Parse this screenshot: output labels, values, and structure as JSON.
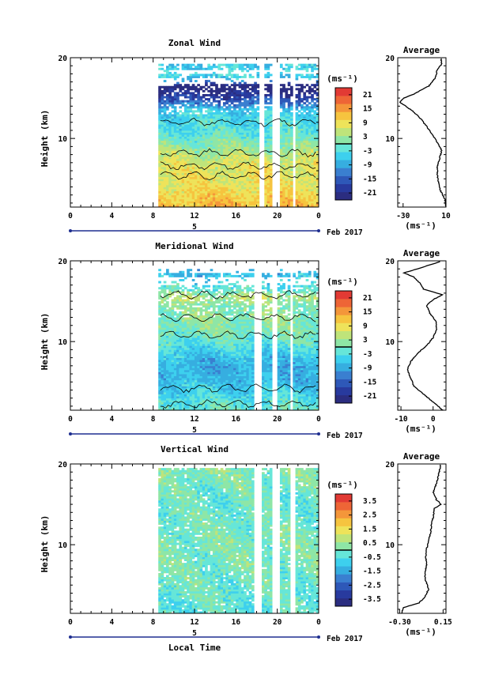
{
  "figure": {
    "date_label": "Feb 2017",
    "day_label": "5",
    "xlabel": "Local Time"
  },
  "colors": {
    "scale": [
      "#2b2d80",
      "#283a9e",
      "#2e58b8",
      "#3a7fd0",
      "#36aee0",
      "#3dd0ee",
      "#66e6d8",
      "#8ee6a6",
      "#bfe47a",
      "#eee35a",
      "#f6c43f",
      "#f4963a",
      "#ee6536",
      "#e23a34"
    ],
    "contour": "#000000",
    "frame": "#000000"
  },
  "chart_data": [
    {
      "type": "heatmap",
      "title": "Zonal Wind",
      "ylabel": "Height (km)",
      "unit": "(ms⁻¹)",
      "xticks": [
        "0",
        "4",
        "8",
        "12",
        "16",
        "20",
        "0"
      ],
      "xlim": [
        0,
        24
      ],
      "ylim": [
        1.5,
        20
      ],
      "yticks": [
        "10",
        "20"
      ],
      "colorbar_ticks": [
        "21",
        "15",
        "9",
        "3",
        "-3",
        "-9",
        "-15",
        "-21"
      ],
      "colorbar_range": [
        -24,
        24
      ],
      "data_start_hour": 8.5,
      "gaps": [
        [
          18.3,
          18.8
        ],
        [
          19.6,
          20.3
        ],
        [
          21.4,
          21.8
        ]
      ],
      "height_profile": [
        [
          1.5,
          13
        ],
        [
          4,
          9
        ],
        [
          7,
          7
        ],
        [
          9,
          2
        ],
        [
          10.5,
          -2
        ],
        [
          11.5,
          -3
        ],
        [
          13.5,
          -5
        ],
        [
          14.5,
          -14
        ],
        [
          15.5,
          -20
        ],
        [
          16.5,
          -26
        ],
        [
          17.2,
          -8
        ],
        [
          18,
          -4
        ],
        [
          19,
          -6
        ],
        [
          20,
          -3
        ]
      ],
      "gaps_y": [
        [
          16.8,
          17.6
        ],
        [
          17.9,
          18.4
        ],
        [
          19.3,
          20
        ]
      ],
      "data_top": 19.2,
      "average": {
        "title": "Average",
        "xlabel": "(ms⁻¹)",
        "xticks": [
          "-30",
          "10"
        ],
        "xlim": [
          -35,
          10
        ],
        "yticks": [
          "10",
          "20"
        ],
        "profile": [
          [
            1.5,
            10
          ],
          [
            2.5,
            9
          ],
          [
            3.5,
            5
          ],
          [
            4.5,
            3
          ],
          [
            5.5,
            2
          ],
          [
            6.5,
            2
          ],
          [
            7.5,
            4
          ],
          [
            8.5,
            6
          ],
          [
            9.5,
            2
          ],
          [
            10.5,
            -3
          ],
          [
            11.5,
            -8
          ],
          [
            12.5,
            -14
          ],
          [
            13.5,
            -22
          ],
          [
            14.5,
            -33
          ],
          [
            15.0,
            -29
          ],
          [
            15.5,
            -20
          ],
          [
            16.5,
            -6
          ],
          [
            17.5,
            0
          ],
          [
            18.5,
            2
          ],
          [
            19.2,
            6
          ],
          [
            20,
            5
          ]
        ]
      }
    },
    {
      "type": "heatmap",
      "title": "Meridional Wind",
      "ylabel": "Height (km)",
      "unit": "(ms⁻¹)",
      "xticks": [
        "0",
        "4",
        "8",
        "12",
        "16",
        "20",
        "0"
      ],
      "xlim": [
        0,
        24
      ],
      "ylim": [
        1.5,
        20
      ],
      "yticks": [
        "10",
        "20"
      ],
      "colorbar_ticks": [
        "21",
        "15",
        "9",
        "3",
        "-3",
        "-9",
        "-15",
        "-21"
      ],
      "colorbar_range": [
        -24,
        24
      ],
      "data_start_hour": 8.5,
      "gaps": [
        [
          17.8,
          18.4
        ],
        [
          19.4,
          20.0
        ],
        [
          21.2,
          21.6
        ]
      ],
      "height_profile": [
        [
          1.5,
          -1
        ],
        [
          3,
          -3
        ],
        [
          5,
          -7
        ],
        [
          7,
          -8
        ],
        [
          8.5,
          -6
        ],
        [
          10,
          -2
        ],
        [
          11.5,
          1
        ],
        [
          13,
          2
        ],
        [
          14.5,
          1
        ],
        [
          15.5,
          5
        ],
        [
          16.5,
          -2
        ],
        [
          17.5,
          -4
        ],
        [
          18.5,
          -8
        ],
        [
          20,
          -8
        ]
      ],
      "gaps_y": [
        [
          17,
          18
        ],
        [
          18.6,
          19
        ]
      ],
      "data_top": 18.9,
      "average": {
        "title": "Average",
        "xlabel": "(ms⁻¹)",
        "xticks": [
          "-10",
          "0"
        ],
        "xlim": [
          -11,
          4
        ],
        "yticks": [
          "10",
          "20"
        ],
        "profile": [
          [
            1.5,
            3
          ],
          [
            2.5,
            0
          ],
          [
            3.5,
            -3
          ],
          [
            4.5,
            -6
          ],
          [
            5.5,
            -7
          ],
          [
            6.5,
            -8
          ],
          [
            7.5,
            -7
          ],
          [
            8.5,
            -5
          ],
          [
            9.5,
            -2
          ],
          [
            10.5,
            0
          ],
          [
            11.5,
            1
          ],
          [
            12.5,
            1
          ],
          [
            13.5,
            -1
          ],
          [
            14.5,
            -2
          ],
          [
            15.2,
            0
          ],
          [
            15.8,
            3
          ],
          [
            16.5,
            -3
          ],
          [
            17.2,
            -4
          ],
          [
            18,
            -6
          ],
          [
            18.5,
            -9
          ],
          [
            19,
            -5
          ],
          [
            20,
            3
          ]
        ]
      }
    },
    {
      "type": "heatmap",
      "title": "Vertical Wind",
      "ylabel": "Height (km)",
      "unit": "(ms⁻¹)",
      "xticks": [
        "0",
        "4",
        "8",
        "12",
        "16",
        "20",
        "0"
      ],
      "xlim": [
        0,
        24
      ],
      "ylim": [
        1.5,
        20
      ],
      "yticks": [
        "10",
        "20"
      ],
      "colorbar_ticks": [
        "3.5",
        "2.5",
        "1.5",
        "0.5",
        "-0.5",
        "-1.5",
        "-2.5",
        "-3.5"
      ],
      "colorbar_range": [
        -4,
        4
      ],
      "data_start_hour": 8.5,
      "gaps": [
        [
          17.8,
          18.4
        ],
        [
          19.6,
          20.2
        ],
        [
          21.3,
          21.7
        ]
      ],
      "height_profile": [
        [
          1.5,
          -0.3
        ],
        [
          5,
          -0.1
        ],
        [
          10,
          0.1
        ],
        [
          15,
          -0.2
        ],
        [
          20,
          0.2
        ]
      ],
      "gaps_y": [],
      "data_top": 19.3,
      "average": {
        "title": "Average",
        "xlabel": "(ms⁻¹)",
        "xticks": [
          "-0.30",
          "0.15"
        ],
        "xlim": [
          -0.32,
          0.18
        ],
        "yticks": [
          "10",
          "20"
        ],
        "profile": [
          [
            1.5,
            -0.28
          ],
          [
            2.2,
            -0.26
          ],
          [
            2.8,
            -0.1
          ],
          [
            3.5,
            -0.04
          ],
          [
            4.5,
            0.0
          ],
          [
            5.5,
            -0.03
          ],
          [
            6.5,
            -0.04
          ],
          [
            7.5,
            -0.02
          ],
          [
            8.5,
            -0.03
          ],
          [
            9.5,
            -0.02
          ],
          [
            10.5,
            0.0
          ],
          [
            11.5,
            0.02
          ],
          [
            12.5,
            0.03
          ],
          [
            13.5,
            0.05
          ],
          [
            14.5,
            0.06
          ],
          [
            15.0,
            0.13
          ],
          [
            15.6,
            0.08
          ],
          [
            16.5,
            0.05
          ],
          [
            17.5,
            0.08
          ],
          [
            18.5,
            0.1
          ],
          [
            19.5,
            0.12
          ],
          [
            20,
            0.12
          ]
        ]
      }
    }
  ]
}
